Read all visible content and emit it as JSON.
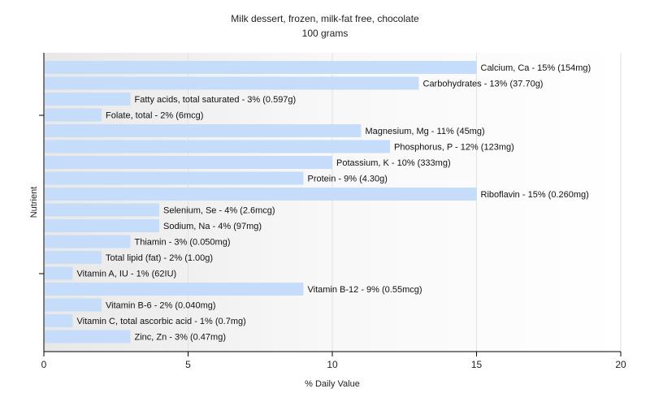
{
  "chart_data": {
    "type": "bar",
    "orientation": "horizontal",
    "title": "Milk dessert, frozen, milk-fat free, chocolate",
    "subtitle": "100 grams",
    "xlabel": "% Daily Value",
    "ylabel": "Nutrient",
    "xlim": [
      0,
      20
    ],
    "xticks": [
      0,
      5,
      10,
      15,
      20
    ],
    "grid": true,
    "bar_color": "#c6dcfb",
    "categories": [
      "Calcium, Ca",
      "Carbohydrates",
      "Fatty acids, total saturated",
      "Folate, total",
      "Magnesium, Mg",
      "Phosphorus, P",
      "Potassium, K",
      "Protein",
      "Riboflavin",
      "Selenium, Se",
      "Sodium, Na",
      "Thiamin",
      "Total lipid (fat)",
      "Vitamin A, IU",
      "Vitamin B-12",
      "Vitamin B-6",
      "Vitamin C, total ascorbic acid",
      "Zinc, Zn"
    ],
    "values": [
      15,
      13,
      3,
      2,
      11,
      12,
      10,
      9,
      15,
      4,
      4,
      3,
      2,
      1,
      9,
      2,
      1,
      3
    ],
    "labels": [
      "Calcium, Ca - 15% (154mg)",
      "Carbohydrates - 13% (37.70g)",
      "Fatty acids, total saturated - 3% (0.597g)",
      "Folate, total - 2% (6mcg)",
      "Magnesium, Mg - 11% (45mg)",
      "Phosphorus, P - 12% (123mg)",
      "Potassium, K - 10% (333mg)",
      "Protein - 9% (4.30g)",
      "Riboflavin - 15% (0.260mg)",
      "Selenium, Se - 4% (2.6mcg)",
      "Sodium, Na - 4% (97mg)",
      "Thiamin - 3% (0.050mg)",
      "Total lipid (fat) - 2% (1.00g)",
      "Vitamin A, IU - 1% (62IU)",
      "Vitamin B-12 - 9% (0.55mcg)",
      "Vitamin B-6 - 2% (0.040mg)",
      "Vitamin C, total ascorbic acid - 1% (0.7mg)",
      "Zinc, Zn - 3% (0.47mg)"
    ]
  }
}
